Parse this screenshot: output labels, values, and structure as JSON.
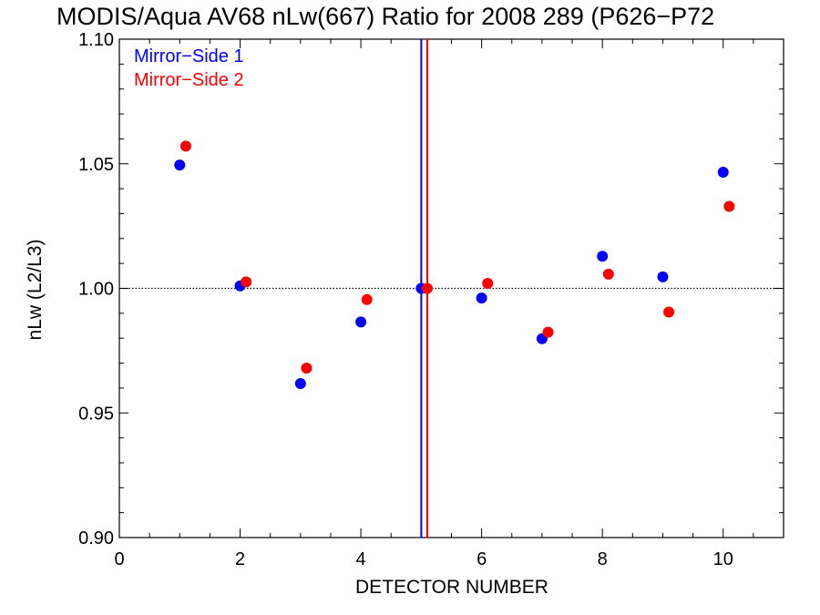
{
  "chart_data": {
    "type": "scatter",
    "title": "MODIS/Aqua AV68 nLw(667) Ratio for 2008 289 (P626−P72",
    "xlabel": "DETECTOR NUMBER",
    "ylabel": "nLw (L2/L3)",
    "xlim": [
      0,
      11
    ],
    "ylim": [
      0.9,
      1.1
    ],
    "x_ticks": [
      "0",
      "2",
      "4",
      "6",
      "8",
      "10"
    ],
    "y_ticks": [
      "0.90",
      "0.95",
      "1.00",
      "1.05",
      "1.10"
    ],
    "reference_line_y": 1.0,
    "vertical_lines": [
      {
        "x": 5.0,
        "color": "#0000ff"
      },
      {
        "x": 5.1,
        "color": "#ff0000"
      }
    ],
    "legend_placement": "top-left",
    "grid": false,
    "series": [
      {
        "name": "Mirror−Side 1",
        "color": "#0000ff",
        "x": [
          1,
          2,
          3,
          4,
          5,
          6,
          7,
          8,
          9,
          10
        ],
        "y": [
          1.0495,
          1.001,
          0.9618,
          0.9865,
          1.0,
          0.9961,
          0.9798,
          1.0129,
          1.0046,
          1.0466
        ]
      },
      {
        "name": "Mirror−Side 2",
        "color": "#ff0000",
        "x": [
          1.1,
          2.1,
          3.1,
          4.1,
          5.1,
          6.1,
          7.1,
          8.1,
          9.1,
          10.1
        ],
        "y": [
          1.0571,
          1.0026,
          0.968,
          0.9955,
          1.0,
          1.002,
          0.9824,
          1.0057,
          0.9905,
          1.0329
        ]
      }
    ]
  }
}
